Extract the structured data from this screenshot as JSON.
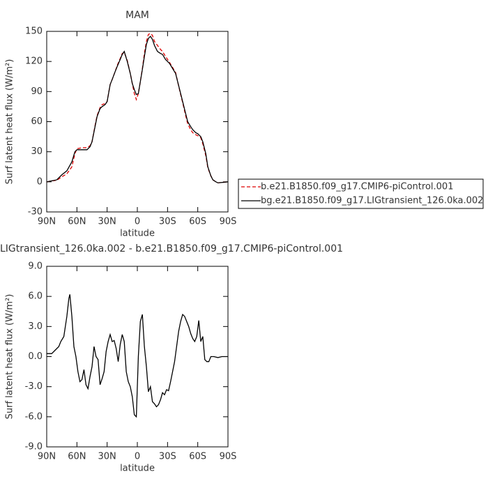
{
  "chart_data": [
    {
      "type": "line",
      "title": "MAM",
      "xlabel": "latitude",
      "ylabel": "Surf latent heat flux (W/m²)",
      "xlim": [
        90,
        -90
      ],
      "xticks": [
        {
          "value": 90,
          "label": "90N"
        },
        {
          "value": 60,
          "label": "60N"
        },
        {
          "value": 30,
          "label": "30N"
        },
        0,
        {
          "value": -30,
          "label": "30S"
        },
        {
          "value": -60,
          "label": "60S"
        },
        {
          "value": -90,
          "label": "90S"
        }
      ],
      "ylim": [
        -30,
        150
      ],
      "yticks": [
        -30,
        0,
        30,
        60,
        90,
        120,
        150
      ],
      "legend": "right",
      "x": [
        90,
        85,
        80,
        75,
        70,
        65,
        62,
        60,
        55,
        50,
        47,
        45,
        42,
        40,
        37,
        35,
        32,
        30,
        27,
        25,
        22,
        20,
        17,
        15,
        13,
        10,
        7,
        5,
        3,
        1,
        -1,
        -3,
        -5,
        -7,
        -9,
        -11,
        -13,
        -15,
        -17,
        -20,
        -23,
        -25,
        -28,
        -30,
        -32,
        -35,
        -38,
        -40,
        -43,
        -45,
        -48,
        -50,
        -53,
        -55,
        -58,
        -60,
        -63,
        -65,
        -68,
        -70,
        -73,
        -75,
        -78,
        -80,
        -85,
        -90
      ],
      "series": [
        {
          "name": "b.e21.B1850.f09_g17.CMIP6-piControl.001",
          "color": "#dd0000",
          "dash": "dashed",
          "values": [
            0,
            1,
            1.5,
            5,
            8,
            15,
            28,
            33,
            34,
            34,
            36,
            40,
            56,
            66,
            74,
            77,
            78,
            80,
            97,
            102,
            110,
            116,
            123,
            128,
            129,
            121,
            108,
            98,
            88,
            82,
            88,
            100,
            113,
            128,
            140,
            147,
            148,
            146,
            140,
            136,
            132,
            130,
            125,
            122,
            119,
            114,
            109,
            100,
            87,
            79,
            66,
            58,
            52,
            49,
            47,
            46,
            44,
            38,
            26,
            14,
            6,
            2,
            0,
            -1,
            -0.5,
            0
          ]
        },
        {
          "name": "bg.e21.B1850.f09_g17.LIGtransient_126.0ka.002",
          "color": "#000000",
          "dash": "solid",
          "values": [
            0,
            1,
            2,
            7,
            11,
            20,
            30,
            32,
            32,
            32,
            35,
            40,
            55,
            65,
            73,
            75,
            77,
            80,
            97,
            102,
            110,
            115,
            122,
            127,
            130,
            120,
            108,
            98,
            92,
            87,
            88,
            100,
            112,
            125,
            137,
            143,
            145,
            142,
            136,
            130,
            128,
            127,
            122,
            120,
            118,
            113,
            108,
            100,
            88,
            80,
            68,
            60,
            55,
            52,
            49,
            48,
            45,
            40,
            28,
            15,
            6,
            2,
            0,
            -1,
            -0.5,
            0
          ]
        }
      ]
    },
    {
      "type": "line",
      "title": "LIGtransient_126.0ka.002 - b.e21.B1850.f09_g17.CMIP6-piControl.001",
      "xlabel": "latitude",
      "ylabel": "Surf latent heat flux (W/m²)",
      "xlim": [
        90,
        -90
      ],
      "xticks": [
        {
          "value": 90,
          "label": "90N"
        },
        {
          "value": 60,
          "label": "60N"
        },
        {
          "value": 30,
          "label": "30N"
        },
        0,
        {
          "value": -30,
          "label": "30S"
        },
        {
          "value": -60,
          "label": "60S"
        },
        {
          "value": -90,
          "label": "90S"
        }
      ],
      "ylim": [
        -9,
        9
      ],
      "yticks": [
        {
          "value": -9,
          "label": "-9.0"
        },
        {
          "value": -6,
          "label": "-6.0"
        },
        {
          "value": -3,
          "label": "-3.0"
        },
        {
          "value": 0,
          "label": "0.0"
        },
        {
          "value": 3,
          "label": "3.0"
        },
        {
          "value": 6,
          "label": "6.0"
        },
        {
          "value": 9,
          "label": "9.0"
        }
      ],
      "color": "#000000",
      "x": [
        90,
        85,
        82,
        78,
        76,
        73,
        70,
        68,
        67,
        65,
        63,
        61,
        59,
        57,
        55,
        53,
        51,
        49,
        47,
        45,
        43,
        41,
        39,
        37,
        35,
        33,
        31,
        29,
        27,
        25,
        23,
        21,
        19,
        17,
        15,
        13,
        11,
        9,
        7,
        5,
        3,
        1,
        -1,
        -3,
        -5,
        -7,
        -9,
        -11,
        -13,
        -15,
        -17,
        -19,
        -21,
        -23,
        -25,
        -27,
        -29,
        -31,
        -33,
        -35,
        -37,
        -39,
        -41,
        -43,
        -45,
        -47,
        -49,
        -51,
        -53,
        -55,
        -57,
        -59,
        -61,
        -63,
        -65,
        -67,
        -69,
        -71,
        -73,
        -76,
        -80,
        -84,
        -90
      ],
      "values": [
        0.3,
        0.3,
        0.6,
        1.0,
        1.5,
        2.0,
        4.0,
        5.8,
        6.2,
        4.0,
        1.0,
        0.0,
        -1.5,
        -2.5,
        -2.3,
        -1.3,
        -2.8,
        -3.2,
        -2.0,
        -1.0,
        1.0,
        0.0,
        -0.3,
        -2.8,
        -2.2,
        -1.5,
        0.5,
        1.5,
        2.2,
        1.5,
        1.6,
        0.8,
        -0.5,
        1.2,
        2.2,
        1.5,
        -1.5,
        -2.5,
        -3.0,
        -4.0,
        -5.8,
        -6.0,
        0.0,
        3.5,
        4.2,
        1.0,
        -1.0,
        -3.5,
        -3.0,
        -4.5,
        -4.7,
        -5.0,
        -4.8,
        -4.3,
        -3.6,
        -3.8,
        -3.3,
        -3.4,
        -2.5,
        -1.5,
        -0.5,
        1.0,
        2.5,
        3.5,
        4.2,
        4.0,
        3.5,
        3.0,
        2.3,
        1.8,
        1.5,
        2.0,
        3.6,
        1.5,
        2.0,
        -0.3,
        -0.5,
        -0.5,
        0.0,
        0.0,
        -0.1,
        0.0,
        0.0
      ]
    }
  ]
}
